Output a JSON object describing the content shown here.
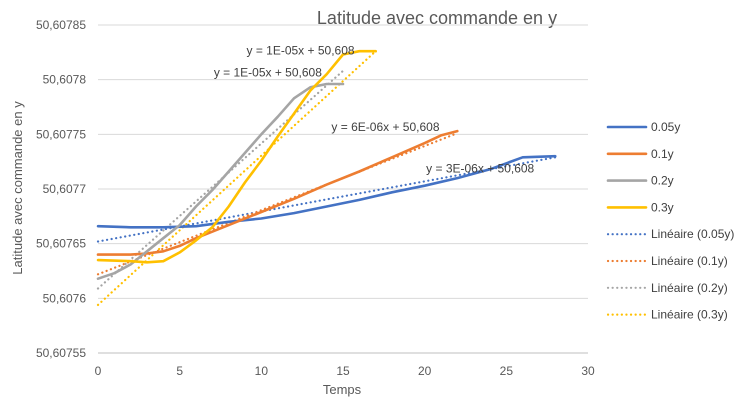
{
  "chart_data": {
    "type": "line",
    "title": "Latitude avec commande en y",
    "xlabel": "Temps",
    "ylabel": "Latitude avec commande en y",
    "xlim": [
      0,
      30
    ],
    "ylim": [
      50.60755,
      50.60785
    ],
    "xticks": [
      0,
      5,
      10,
      15,
      20,
      25,
      30
    ],
    "xtick_labels": [
      "0",
      "5",
      "10",
      "15",
      "20",
      "25",
      "30"
    ],
    "yticks": [
      50.60755,
      50.6076,
      50.60765,
      50.6077,
      50.60775,
      50.6078,
      50.60785
    ],
    "ytick_labels": [
      "50,60755",
      "50,6076",
      "50,60765",
      "50,6077",
      "50,60775",
      "50,6078",
      "50,60785"
    ],
    "grid": "horizontal",
    "legend_position": "right",
    "series": [
      {
        "name": "0.05y",
        "color": "#4472C4",
        "style": "solid",
        "x": [
          0,
          2,
          4,
          6,
          8,
          10,
          12,
          14,
          16,
          18,
          20,
          22,
          24,
          26,
          28
        ],
        "y": [
          50.607666,
          50.607665,
          50.607665,
          50.607666,
          50.60767,
          50.607673,
          50.607678,
          50.607684,
          50.60769,
          50.607697,
          50.607703,
          50.60771,
          50.607718,
          50.607729,
          50.60773
        ]
      },
      {
        "name": "0.1y",
        "color": "#ED7D31",
        "style": "solid",
        "x": [
          0,
          2,
          3,
          4,
          5,
          6,
          8,
          10,
          12,
          14,
          16,
          18,
          20,
          21,
          22
        ],
        "y": [
          50.60764,
          50.60764,
          50.607641,
          50.607643,
          50.607648,
          50.607655,
          50.607667,
          50.607679,
          50.607691,
          50.607704,
          50.607716,
          50.607729,
          50.607742,
          50.607749,
          50.607753
        ]
      },
      {
        "name": "0.2y",
        "color": "#A5A5A5",
        "style": "solid",
        "x": [
          0,
          1,
          2,
          3,
          4,
          5,
          6,
          7,
          8,
          9,
          10,
          11,
          12,
          13,
          14,
          15
        ],
        "y": [
          50.607618,
          50.607623,
          50.607631,
          50.607643,
          50.607655,
          50.607667,
          50.607684,
          50.607699,
          50.607716,
          50.607733,
          50.60775,
          50.607766,
          50.607783,
          50.607793,
          50.607796,
          50.607796
        ]
      },
      {
        "name": "0.3y",
        "color": "#FFC000",
        "style": "solid",
        "x": [
          0,
          2,
          3,
          4,
          5,
          6,
          7,
          8,
          9,
          10,
          11,
          12,
          13,
          14,
          15,
          16,
          17
        ],
        "y": [
          50.607635,
          50.607634,
          50.607633,
          50.607634,
          50.607642,
          50.607653,
          50.607665,
          50.607684,
          50.607706,
          50.607726,
          50.607748,
          50.607769,
          50.60779,
          50.607805,
          50.607823,
          50.607826,
          50.607826
        ]
      },
      {
        "name": "Linéaire (0.05y)",
        "color": "#4472C4",
        "style": "dotted",
        "x": [
          0,
          28
        ],
        "y": [
          50.607652,
          50.607729
        ]
      },
      {
        "name": "Linéaire (0.1y)",
        "color": "#ED7D31",
        "style": "dotted",
        "x": [
          0,
          22
        ],
        "y": [
          50.607622,
          50.607751
        ]
      },
      {
        "name": "Linéaire (0.2y)",
        "color": "#A5A5A5",
        "style": "dotted",
        "x": [
          0,
          15
        ],
        "y": [
          50.607609,
          50.607808
        ]
      },
      {
        "name": "Linéaire (0.3y)",
        "color": "#FFC000",
        "style": "dotted",
        "x": [
          0,
          17
        ],
        "y": [
          50.607594,
          50.607826
        ]
      }
    ],
    "trendline_labels": [
      {
        "text": "y = 1E-05x + 50,608",
        "x": 12.4,
        "y": 50.607823
      },
      {
        "text": "y = 1E-05x + 50,608",
        "x": 10.4,
        "y": 50.607803
      },
      {
        "text": "y = 6E-06x + 50,608",
        "x": 17.6,
        "y": 50.607753
      },
      {
        "text": "y = 3E-06x + 50,608",
        "x": 23.4,
        "y": 50.607715
      }
    ]
  }
}
